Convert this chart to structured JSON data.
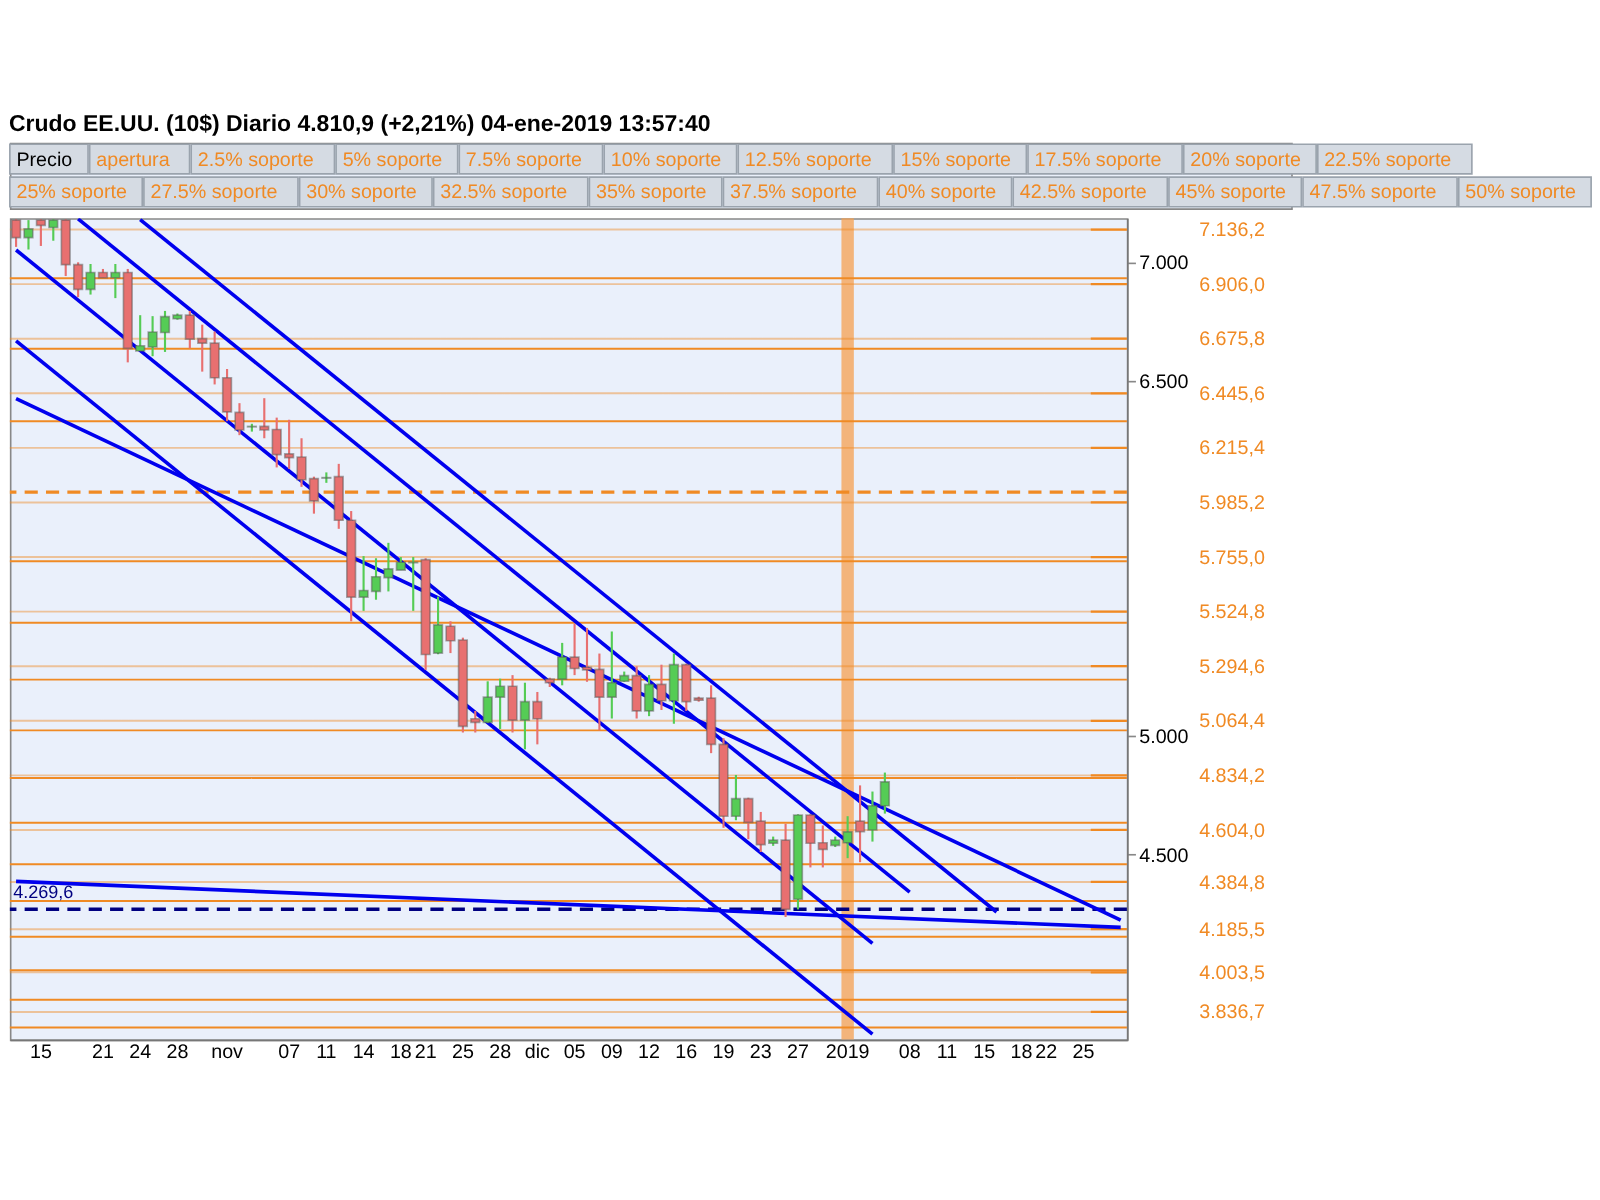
{
  "chart_data": {
    "type": "candlestick",
    "title": "Crudo EE.UU. (10$)   Diario   4.810,9 (+2,21%)   04-ene-2019 13:57:40",
    "annotations": [
      "Precio",
      "apertura",
      "2.5% soporte",
      "5% soporte",
      "7.5% soporte",
      "10% soporte",
      "12.5% soporte",
      "15% soporte",
      "17.5% soporte",
      "20% soporte",
      "22.5% soporte",
      "25% soporte",
      "27.5% soporte",
      "30% soporte",
      "32.5% soporte",
      "35% soporte",
      "37.5% soporte",
      "40% soporte",
      "42.5% soporte",
      "45% soporte",
      "47.5% soporte",
      "50% soporte"
    ],
    "categories": [
      null,
      null,
      "15",
      null,
      null,
      null,
      null,
      "21",
      null,
      null,
      "24",
      null,
      null,
      "28",
      null,
      null,
      null,
      "nov",
      null,
      null,
      null,
      null,
      "07",
      null,
      null,
      "11",
      null,
      null,
      "14",
      null,
      null,
      "18",
      null,
      "21",
      null,
      null,
      "25",
      null,
      null,
      "28",
      null,
      null,
      "dic",
      null,
      null,
      "05",
      null,
      null,
      "09",
      null,
      null,
      "12",
      null,
      null,
      "16",
      null,
      null,
      "19",
      null,
      null,
      "23",
      null,
      null,
      "27",
      null,
      null,
      null,
      "2019",
      null,
      null,
      null,
      null,
      "08",
      null,
      null,
      "11",
      null,
      null,
      "15",
      null,
      null,
      "18",
      null,
      "22",
      null,
      null,
      "25",
      null,
      null,
      null
    ],
    "ohlc": [
      [
        7176,
        7180,
        7063,
        7102
      ],
      [
        7102,
        7176,
        7052,
        7139
      ],
      [
        7176,
        7180,
        7067,
        7154
      ],
      [
        7145,
        7180,
        7089,
        7176
      ],
      [
        7176,
        7180,
        6940,
        6988
      ],
      [
        6988,
        6998,
        6851,
        6884
      ],
      [
        6884,
        6991,
        6862,
        6955
      ],
      [
        6955,
        6970,
        6933,
        6933
      ],
      [
        6933,
        6991,
        6847,
        6955
      ],
      [
        6955,
        6970,
        6576,
        6635
      ],
      [
        6624,
        6775,
        6624,
        6646
      ],
      [
        6641,
        6771,
        6602,
        6704
      ],
      [
        6702,
        6793,
        6620,
        6769
      ],
      [
        6760,
        6782,
        6756,
        6775
      ],
      [
        6775,
        6793,
        6635,
        6674
      ],
      [
        6676,
        6735,
        6537,
        6657
      ],
      [
        6657,
        6706,
        6483,
        6511
      ],
      [
        6511,
        6548,
        6328,
        6367
      ],
      [
        6365,
        6404,
        6269,
        6291
      ],
      [
        6304,
        6317,
        6284,
        6306
      ],
      [
        6306,
        6425,
        6256,
        6291
      ],
      [
        6293,
        6343,
        6133,
        6187
      ],
      [
        6190,
        6334,
        6127,
        6174
      ],
      [
        6177,
        6256,
        6051,
        6081
      ],
      [
        6086,
        6094,
        5938,
        5992
      ],
      [
        6088,
        6112,
        6068,
        6090
      ],
      [
        6094,
        6148,
        5874,
        5910
      ],
      [
        5910,
        5949,
        5484,
        5586
      ],
      [
        5586,
        5759,
        5528,
        5614
      ],
      [
        5610,
        5750,
        5575,
        5672
      ],
      [
        5668,
        5815,
        5610,
        5705
      ],
      [
        5700,
        5755,
        5700,
        5733
      ],
      [
        5731,
        5755,
        5528,
        5733
      ],
      [
        5744,
        5750,
        5279,
        5344
      ],
      [
        5350,
        5588,
        5345,
        5469
      ],
      [
        5463,
        5484,
        5350,
        5402
      ],
      [
        5405,
        5415,
        5015,
        5041
      ],
      [
        5073,
        5106,
        5015,
        5058
      ],
      [
        5058,
        5231,
        5055,
        5164
      ],
      [
        5164,
        5242,
        5030,
        5210
      ],
      [
        5210,
        5257,
        5015,
        5067
      ],
      [
        5067,
        5225,
        4944,
        5145
      ],
      [
        5145,
        5186,
        4965,
        5073
      ],
      [
        5240,
        5246,
        5207,
        5225
      ],
      [
        5240,
        5393,
        5214,
        5333
      ],
      [
        5333,
        5473,
        5257,
        5285
      ],
      [
        5290,
        5456,
        5229,
        5279
      ],
      [
        5281,
        5348,
        5024,
        5164
      ],
      [
        5164,
        5441,
        5074,
        5225
      ],
      [
        5231,
        5272,
        5229,
        5255
      ],
      [
        5255,
        5294,
        5074,
        5106
      ],
      [
        5106,
        5257,
        5084,
        5218
      ],
      [
        5218,
        5301,
        5110,
        5149
      ],
      [
        5149,
        5348,
        5052,
        5301
      ],
      [
        5301,
        5305,
        5106,
        5145
      ],
      [
        5160,
        5166,
        5145,
        5151
      ],
      [
        5160,
        5214,
        4928,
        4965
      ],
      [
        4965,
        4991,
        4613,
        4662
      ],
      [
        4662,
        4836,
        4645,
        4736
      ],
      [
        4736,
        4740,
        4565,
        4636
      ],
      [
        4641,
        4680,
        4511,
        4542
      ],
      [
        4548,
        4576,
        4537,
        4561
      ],
      [
        4561,
        4630,
        4237,
        4269
      ],
      [
        4312,
        4670,
        4269,
        4667
      ],
      [
        4667,
        4670,
        4446,
        4548
      ],
      [
        4550,
        4623,
        4446,
        4522
      ],
      [
        4539,
        4576,
        4532,
        4561
      ],
      [
        4550,
        4662,
        4485,
        4596
      ],
      [
        4641,
        4792,
        4468,
        4597
      ],
      [
        4604,
        4766,
        4555,
        4706
      ],
      [
        4706,
        4846,
        4673,
        4807
      ],
      null,
      null,
      null,
      null,
      null,
      null,
      null,
      null,
      null,
      null,
      null,
      null,
      null,
      null,
      null,
      null,
      null,
      null,
      null
    ],
    "colors": [
      "#e87070",
      "#55cc55",
      "#e87070",
      "#55cc55",
      "#e87070",
      "#e87070",
      "#55cc55",
      "#e87070",
      "#55cc55",
      "#e87070",
      "#55cc55",
      "#55cc55",
      "#55cc55",
      "#55cc55",
      "#e87070",
      "#e87070",
      "#e87070",
      "#e87070",
      "#e87070",
      "#55cc55",
      "#e87070",
      "#e87070",
      "#e87070",
      "#e87070",
      "#e87070",
      "#55cc55",
      "#e87070",
      "#e87070",
      "#55cc55",
      "#55cc55",
      "#55cc55",
      "#55cc55",
      "#55cc55",
      "#e87070",
      "#55cc55",
      "#e87070",
      "#e87070",
      "#e87070",
      "#55cc55",
      "#55cc55",
      "#e87070",
      "#55cc55",
      "#e87070",
      "#e87070",
      "#55cc55",
      "#e87070",
      "#e87070",
      "#e87070",
      "#55cc55",
      "#55cc55",
      "#e87070",
      "#55cc55",
      "#e87070",
      "#55cc55",
      "#e87070",
      "#e87070",
      "#e87070",
      "#e87070",
      "#55cc55",
      "#e87070",
      "#e87070",
      "#55cc55",
      "#e87070",
      "#55cc55",
      "#e87070",
      "#e87070",
      "#55cc55",
      "#55cc55",
      "#e87070",
      "#55cc55",
      "#55cc55",
      null,
      null,
      null,
      null,
      null,
      null,
      null,
      null,
      null,
      null,
      null,
      null,
      null,
      null,
      null,
      null,
      null,
      null,
      null
    ],
    "series": [
      {
        "type": "line",
        "color": "#0000ee",
        "values": [
          null,
          null,
          null,
          null,
          null,
          null,
          null,
          null,
          null,
          null,
          7178,
          null,
          null,
          null,
          null,
          null,
          null,
          null,
          null,
          null,
          null,
          null,
          null,
          null,
          null,
          null,
          null,
          null,
          null,
          null,
          null,
          null,
          null,
          null,
          null,
          null,
          null,
          null,
          null,
          null,
          null,
          null,
          null,
          null,
          null,
          null,
          null,
          null,
          null,
          null,
          null,
          null,
          null,
          null,
          null,
          null,
          null,
          null,
          null,
          null,
          null,
          null,
          null,
          null,
          null,
          null,
          null,
          null,
          null,
          null,
          null,
          null,
          null,
          null,
          null,
          null,
          null,
          null,
          null,
          4258,
          null,
          null,
          null,
          null,
          null,
          null,
          null,
          null,
          null,
          null
        ]
      },
      {
        "type": "line",
        "color": "#0000ee",
        "values": [
          null,
          null,
          null,
          null,
          null,
          7181,
          null,
          null,
          null,
          null,
          null,
          null,
          null,
          null,
          null,
          null,
          null,
          null,
          null,
          null,
          null,
          null,
          null,
          null,
          null,
          null,
          null,
          null,
          null,
          null,
          null,
          null,
          null,
          null,
          null,
          null,
          null,
          null,
          null,
          null,
          null,
          null,
          null,
          null,
          null,
          null,
          null,
          null,
          null,
          null,
          null,
          null,
          null,
          null,
          null,
          null,
          null,
          null,
          null,
          null,
          null,
          null,
          null,
          null,
          null,
          null,
          null,
          null,
          null,
          null,
          null,
          null,
          4342,
          null,
          null,
          null,
          null,
          null,
          null,
          null,
          null,
          null,
          null,
          null,
          null,
          null,
          null,
          null,
          null,
          null
        ]
      },
      {
        "type": "line",
        "color": "#0000ee",
        "values": [
          7050,
          null,
          null,
          null,
          null,
          null,
          null,
          null,
          null,
          null,
          null,
          null,
          null,
          null,
          null,
          null,
          null,
          null,
          null,
          null,
          null,
          null,
          null,
          null,
          null,
          null,
          null,
          null,
          null,
          null,
          null,
          null,
          null,
          null,
          null,
          null,
          null,
          null,
          null,
          null,
          null,
          null,
          null,
          null,
          null,
          null,
          null,
          null,
          null,
          null,
          null,
          null,
          null,
          null,
          null,
          null,
          null,
          null,
          null,
          null,
          null,
          null,
          null,
          null,
          null,
          null,
          null,
          null,
          null,
          4126,
          null,
          null,
          null,
          null,
          null,
          null,
          null,
          null,
          null,
          null,
          null,
          null,
          null,
          null,
          null,
          null,
          null,
          null,
          null,
          null
        ]
      },
      {
        "type": "line",
        "color": "#0000ee",
        "values": [
          6667,
          null,
          null,
          null,
          null,
          null,
          null,
          null,
          null,
          null,
          null,
          null,
          null,
          null,
          null,
          null,
          null,
          null,
          null,
          null,
          null,
          null,
          null,
          null,
          null,
          null,
          null,
          null,
          null,
          null,
          null,
          null,
          null,
          null,
          null,
          null,
          null,
          null,
          null,
          null,
          null,
          null,
          null,
          null,
          null,
          null,
          null,
          null,
          null,
          null,
          null,
          null,
          null,
          null,
          null,
          null,
          null,
          null,
          null,
          null,
          null,
          null,
          null,
          null,
          null,
          null,
          null,
          null,
          null,
          3743,
          null,
          null,
          null,
          null,
          null,
          null,
          null,
          null,
          null,
          null,
          null,
          null,
          null,
          null,
          null,
          null,
          null,
          null,
          null,
          null
        ]
      },
      {
        "type": "line",
        "color": "#0000ee",
        "values": [
          6423,
          null,
          null,
          null,
          null,
          null,
          null,
          null,
          null,
          null,
          null,
          null,
          null,
          null,
          null,
          null,
          null,
          null,
          null,
          null,
          null,
          null,
          null,
          null,
          null,
          null,
          null,
          null,
          null,
          null,
          null,
          null,
          null,
          null,
          null,
          null,
          null,
          null,
          null,
          null,
          null,
          null,
          null,
          null,
          null,
          null,
          null,
          null,
          null,
          null,
          null,
          null,
          null,
          null,
          null,
          null,
          null,
          null,
          null,
          null,
          null,
          null,
          null,
          null,
          null,
          null,
          null,
          null,
          null,
          null,
          null,
          null,
          null,
          null,
          null,
          null,
          null,
          null,
          null,
          null,
          null,
          null,
          null,
          null,
          null,
          null,
          null,
          null,
          null,
          4224
        ]
      },
      {
        "type": "line",
        "color": "#0000ee",
        "values": [
          4387,
          null,
          null,
          null,
          null,
          null,
          null,
          null,
          null,
          null,
          null,
          null,
          null,
          null,
          null,
          null,
          null,
          null,
          null,
          null,
          null,
          null,
          null,
          null,
          null,
          null,
          null,
          null,
          null,
          null,
          null,
          null,
          null,
          null,
          null,
          null,
          null,
          null,
          null,
          null,
          null,
          null,
          null,
          null,
          null,
          null,
          null,
          null,
          null,
          null,
          null,
          null,
          null,
          null,
          null,
          null,
          null,
          null,
          null,
          null,
          null,
          null,
          null,
          null,
          null,
          null,
          null,
          null,
          null,
          null,
          null,
          null,
          null,
          null,
          null,
          null,
          null,
          null,
          null,
          null,
          null,
          null,
          null,
          null,
          null,
          null,
          null,
          null,
          null,
          4193
        ]
      }
    ],
    "ylim": [
      3720,
      7184
    ],
    "yticks": [
      {
        "value": 7000,
        "label": "7.000"
      },
      {
        "value": 6500,
        "label": "6.500"
      },
      {
        "value": 5000,
        "label": "5.000"
      },
      {
        "value": 4500,
        "label": "4.500"
      }
    ],
    "bands": [
      {
        "axis": "x",
        "from": "2019",
        "to": "2019",
        "color": "#f5a050"
      }
    ],
    "ref_lines": [
      {
        "axis": "y",
        "value": 6931,
        "color": "#f08a24"
      },
      {
        "axis": "y",
        "value": 6633,
        "color": "#f08a24"
      },
      {
        "axis": "y",
        "value": 6328,
        "color": "#f08a24"
      },
      {
        "axis": "y",
        "value": 6029,
        "color": "#f08a24",
        "line_style": "dashed"
      },
      {
        "axis": "y",
        "value": 5737,
        "color": "#f08a24"
      },
      {
        "axis": "y",
        "value": 5478,
        "color": "#f08a24"
      },
      {
        "axis": "y",
        "value": 5238,
        "color": "#f08a24"
      },
      {
        "axis": "y",
        "value": 5024,
        "color": "#f08a24"
      },
      {
        "axis": "y",
        "value": 4823,
        "color": "#f08a24"
      },
      {
        "axis": "y",
        "value": 4634,
        "color": "#f08a24"
      },
      {
        "axis": "y",
        "value": 4459,
        "color": "#f08a24"
      },
      {
        "axis": "y",
        "value": 4304,
        "color": "#f08a24"
      },
      {
        "axis": "y",
        "value": 4154,
        "color": "#f08a24"
      },
      {
        "axis": "y",
        "value": 4012,
        "color": "#f08a24"
      },
      {
        "axis": "y",
        "value": 3888,
        "color": "#f08a24"
      },
      {
        "axis": "y",
        "value": 3771,
        "color": "#f08a24"
      },
      {
        "axis": "y",
        "value": 4269.6,
        "label": "4.269,6",
        "color": "#000080",
        "line_style": "dashed"
      },
      {
        "axis": "y",
        "value": 7136.2,
        "label": "7.136,2",
        "color": "#f08a24"
      },
      {
        "axis": "y",
        "value": 6906.0,
        "label": "6.906,0",
        "color": "#f08a24"
      },
      {
        "axis": "y",
        "value": 6675.8,
        "label": "6.675,8",
        "color": "#f08a24"
      },
      {
        "axis": "y",
        "value": 6445.6,
        "label": "6.445,6",
        "color": "#f08a24"
      },
      {
        "axis": "y",
        "value": 6215.4,
        "label": "6.215,4",
        "color": "#f08a24"
      },
      {
        "axis": "y",
        "value": 5985.2,
        "label": "5.985,2",
        "color": "#f08a24"
      },
      {
        "axis": "y",
        "value": 5755.0,
        "label": "5.755,0",
        "color": "#f08a24"
      },
      {
        "axis": "y",
        "value": 5524.8,
        "label": "5.524,8",
        "color": "#f08a24"
      },
      {
        "axis": "y",
        "value": 5294.6,
        "label": "5.294,6",
        "color": "#f08a24"
      },
      {
        "axis": "y",
        "value": 5064.4,
        "label": "5.064,4",
        "color": "#f08a24"
      },
      {
        "axis": "y",
        "value": 4834.2,
        "label": "4.834,2",
        "color": "#f08a24"
      },
      {
        "axis": "y",
        "value": 4604.0,
        "label": "4.604,0",
        "color": "#f08a24"
      },
      {
        "axis": "y",
        "value": 4384.8,
        "label": "4.384,8",
        "color": "#f08a24"
      },
      {
        "axis": "y",
        "value": 4185.5,
        "label": "4.185,5",
        "color": "#f08a24"
      },
      {
        "axis": "y",
        "value": 4003.5,
        "label": "4.003,5",
        "color": "#f08a24"
      },
      {
        "axis": "y",
        "value": 3836.7,
        "label": "3.836,7",
        "color": "#f08a24"
      }
    ],
    "grid": false
  }
}
